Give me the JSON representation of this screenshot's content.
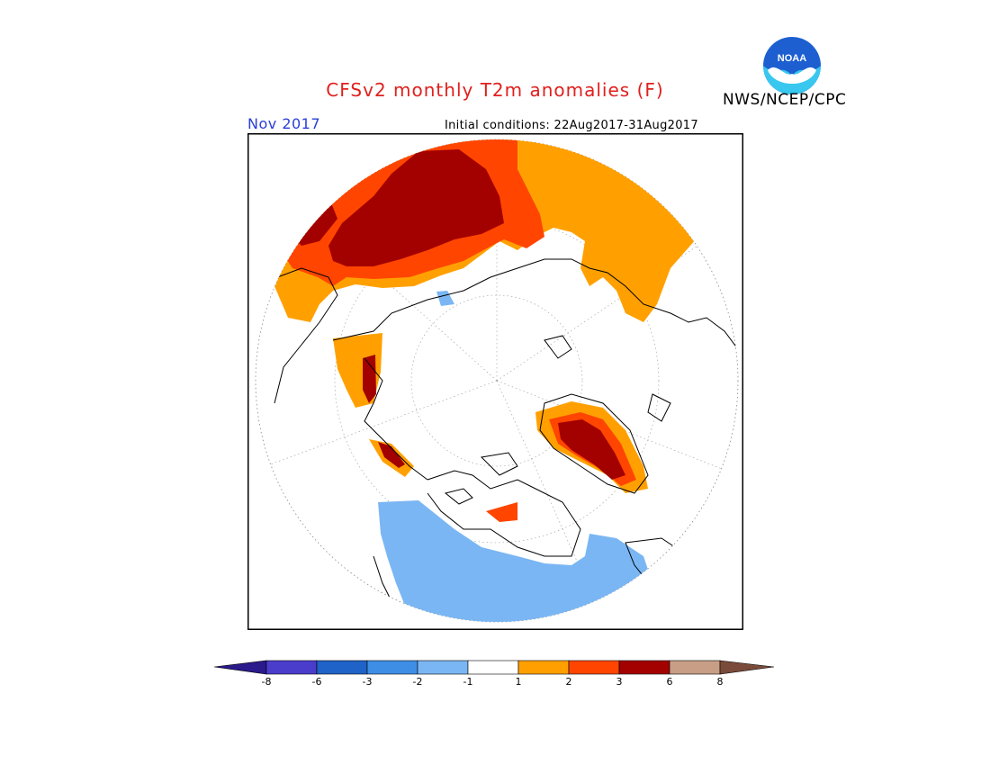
{
  "title": "CFSv2 monthly T2m anomalies (F)",
  "agency": "NWS/NCEP/CPC",
  "logo_text": "NOAA",
  "valid_month": "Nov 2017",
  "initial_conditions": "Initial conditions: 22Aug2017-31Aug2017",
  "colors": {
    "title": "#e0201c",
    "month": "#2a3fd8",
    "lt_neg8": "#2a1a8c",
    "neg8_neg6": "#4b3dcc",
    "neg6_neg3": "#1f63c8",
    "neg3_neg2": "#3e8ee6",
    "neg2_neg1": "#7ab6f3",
    "neg1_pos1": "#ffffff",
    "pos1_pos2": "#ffa000",
    "pos2_pos3": "#ff4500",
    "pos3_pos6": "#a30000",
    "pos6_pos8": "#c89e86",
    "gt_pos8": "#7a4b3a"
  },
  "colorbar": {
    "labels": [
      "-8",
      "-6",
      "-3",
      "-2",
      "-1",
      "1",
      "2",
      "3",
      "6",
      "8"
    ]
  }
}
